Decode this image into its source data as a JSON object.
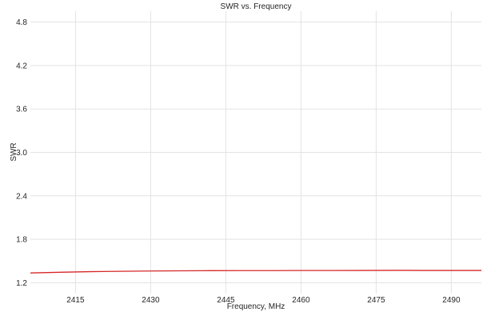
{
  "chart_data": {
    "type": "line",
    "title": "SWR vs. Frequency",
    "xlabel": "Frequency, MHz",
    "ylabel": "SWR",
    "xlim": [
      2406,
      2496
    ],
    "ylim": [
      1.05,
      4.95
    ],
    "xticks": [
      2415,
      2430,
      2445,
      2460,
      2475,
      2490
    ],
    "yticks": [
      1.2,
      1.8,
      2.4,
      3.0,
      3.6,
      4.2,
      4.8
    ],
    "grid": true,
    "series": [
      {
        "color": "#d62728",
        "x": [
          2406,
          2412,
          2418,
          2424,
          2430,
          2436,
          2442,
          2448,
          2454,
          2460,
          2466,
          2472,
          2478,
          2481,
          2484,
          2490,
          2496
        ],
        "y": [
          1.335,
          1.345,
          1.353,
          1.358,
          1.362,
          1.365,
          1.367,
          1.368,
          1.368,
          1.369,
          1.369,
          1.37,
          1.371,
          1.371,
          1.37,
          1.37,
          1.37
        ]
      }
    ]
  }
}
